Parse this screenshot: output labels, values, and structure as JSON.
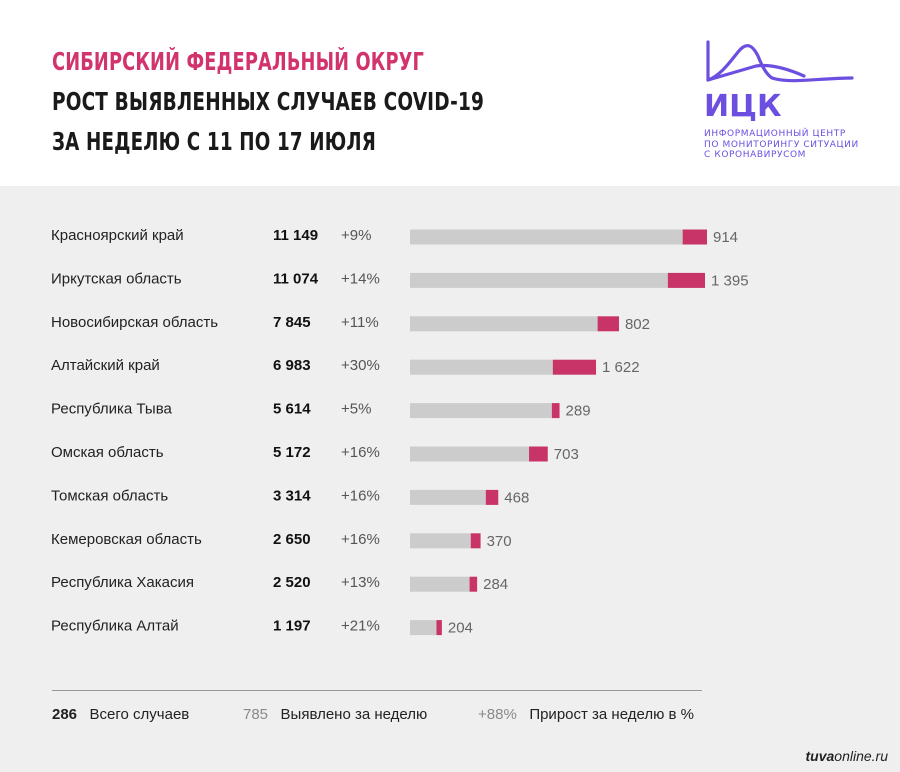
{
  "header": {
    "title_line1": "СИБИРСКИЙ ФЕДЕРАЛЬНЫЙ ОКРУГ",
    "title_line2": "РОСТ ВЫЯВЛЕННЫХ СЛУЧАЕВ COVID-19",
    "title_line3": "ЗА НЕДЕЛЮ С 11 ПО 17 ИЮЛЯ",
    "title_color": "#d3336d"
  },
  "logo": {
    "abbr": "ИЦК",
    "line1": "ИНФОРМАЦИОННЫЙ ЦЕНТР",
    "line2": "ПО МОНИТОРИНГУ СИТУАЦИИ",
    "line3": "С КОРОНАВИРУСОМ",
    "color": "#6c4fe0"
  },
  "chart_data": {
    "type": "bar",
    "orientation": "horizontal",
    "stacked": true,
    "categories": [
      "Красноярский край",
      "Иркутская область",
      "Новосибирская область",
      "Алтайский край",
      "Республика Тыва",
      "Омская область",
      "Томская область",
      "Кемеровская область",
      "Республика Хакасия",
      "Республика Алтай"
    ],
    "totals": [
      "11 149",
      "11 074",
      "7 845",
      "6 983",
      "5 614",
      "5 172",
      "3 314",
      "2 650",
      "2 520",
      "1 197"
    ],
    "growth_pct": [
      "+9%",
      "+14%",
      "+11%",
      "+30%",
      "+5%",
      "+16%",
      "+16%",
      "+16%",
      "+13%",
      "+21%"
    ],
    "weekly_labels": [
      "914",
      "1 395",
      "802",
      "1 622",
      "289",
      "703",
      "468",
      "370",
      "284",
      "204"
    ],
    "series": [
      {
        "values": [
          10235,
          9679,
          7043,
          5361,
          5325,
          4469,
          2846,
          2280,
          2236,
          993
        ],
        "color": "#cccccc"
      },
      {
        "values": [
          914,
          1395,
          802,
          1622,
          289,
          703,
          468,
          370,
          284,
          204
        ],
        "color": "#c93468"
      }
    ],
    "xlim": [
      0,
      11149
    ]
  },
  "legend": {
    "total_value": "286",
    "total_label": "Всего случаев",
    "weekly_value": "785",
    "weekly_label": "Выявлено за неделю",
    "growth_value": "+88%",
    "growth_label": "Прирост за неделю в %"
  },
  "credit": {
    "bold": "tuva",
    "rest": "online.ru"
  }
}
